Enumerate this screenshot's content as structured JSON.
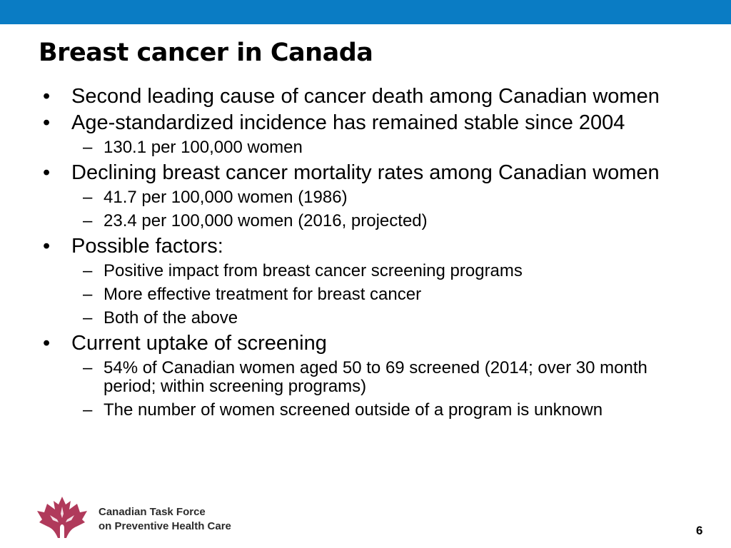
{
  "header": {
    "bar_color": "#0a7cc4"
  },
  "slide": {
    "title": "Breast cancer in Canada",
    "bullets": [
      {
        "text": "Second leading cause of cancer death among Canadian women",
        "subs": []
      },
      {
        "text": "Age-standardized incidence has remained stable since 2004",
        "subs": [
          "130.1 per 100,000 women"
        ]
      },
      {
        "text": "Declining breast cancer mortality rates among Canadian women",
        "subs": [
          "41.7 per 100,000 women (1986)",
          "23.4 per 100,000 women (2016, projected)"
        ]
      },
      {
        "text": "Possible factors:",
        "subs": [
          "Positive impact from breast cancer screening programs",
          "More effective treatment for breast cancer",
          "Both of the above"
        ]
      },
      {
        "text": "Current uptake of screening",
        "subs": [
          "54% of Canadian women aged 50 to 69 screened (2014; over 30 month period; within screening programs)",
          "The number of women screened outside of a program is unknown"
        ]
      }
    ],
    "bullet_marker": "•",
    "sub_marker": "–"
  },
  "footer": {
    "org_line1": "Canadian Task Force",
    "org_line2": "on Preventive Health Care",
    "logo_icon": "maple-leaf-logo-icon",
    "logo_color": "#b03a5b",
    "page_number": "6"
  }
}
